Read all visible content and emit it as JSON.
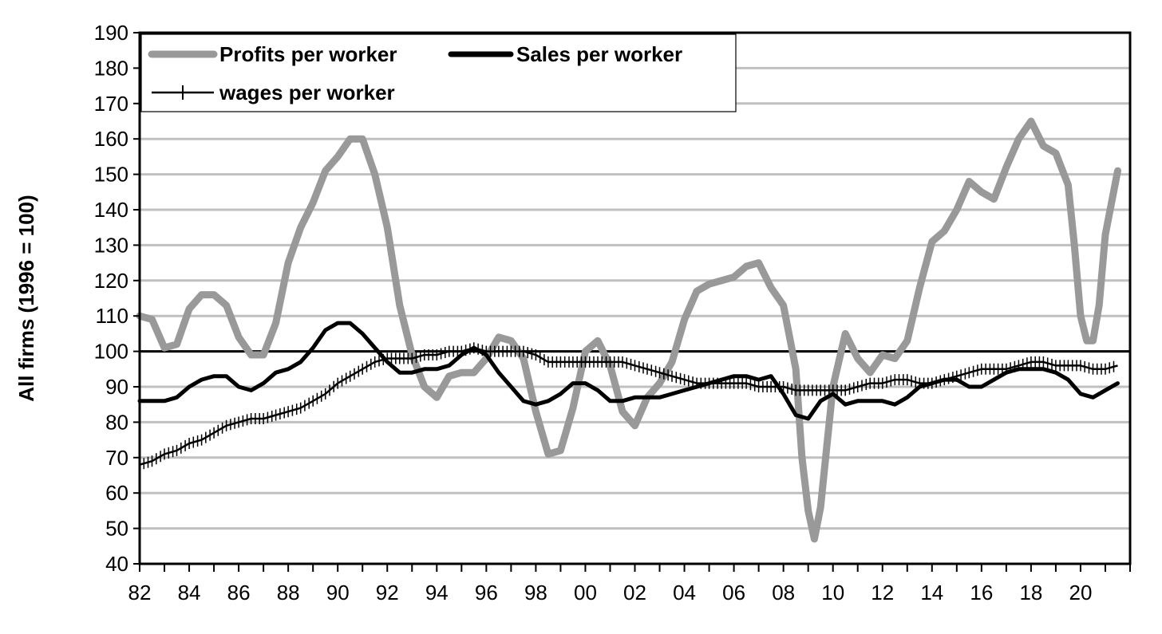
{
  "chart_data": {
    "type": "line",
    "title": "",
    "xlabel": "",
    "ylabel": "All firms (1996 = 100)",
    "ylim": [
      40,
      190
    ],
    "yticks": [
      40,
      50,
      60,
      70,
      80,
      90,
      100,
      110,
      120,
      130,
      140,
      150,
      160,
      170,
      180,
      190
    ],
    "xlim": [
      1982,
      2022
    ],
    "xticks": [
      {
        "value": 1982,
        "label": "82"
      },
      {
        "value": 1984,
        "label": "84"
      },
      {
        "value": 1986,
        "label": "86"
      },
      {
        "value": 1988,
        "label": "88"
      },
      {
        "value": 1990,
        "label": "90"
      },
      {
        "value": 1992,
        "label": "92"
      },
      {
        "value": 1994,
        "label": "94"
      },
      {
        "value": 1996,
        "label": "96"
      },
      {
        "value": 1998,
        "label": "98"
      },
      {
        "value": 2000,
        "label": "00"
      },
      {
        "value": 2002,
        "label": "02"
      },
      {
        "value": 2004,
        "label": "04"
      },
      {
        "value": 2006,
        "label": "06"
      },
      {
        "value": 2008,
        "label": "08"
      },
      {
        "value": 2010,
        "label": "10"
      },
      {
        "value": 2012,
        "label": "12"
      },
      {
        "value": 2014,
        "label": "14"
      },
      {
        "value": 2016,
        "label": "16"
      },
      {
        "value": 2018,
        "label": "18"
      },
      {
        "value": 2020,
        "label": "20"
      }
    ],
    "grid": true,
    "legend_position": "top-left",
    "reference_line": 100,
    "series": [
      {
        "name": "Profits per worker",
        "color": "#999999",
        "style": "thick",
        "points": [
          [
            1982.0,
            110
          ],
          [
            1982.5,
            109
          ],
          [
            1983.0,
            101
          ],
          [
            1983.5,
            102
          ],
          [
            1984.0,
            112
          ],
          [
            1984.5,
            116
          ],
          [
            1985.0,
            116
          ],
          [
            1985.5,
            113
          ],
          [
            1986.0,
            104
          ],
          [
            1986.5,
            99
          ],
          [
            1987.0,
            99
          ],
          [
            1987.5,
            108
          ],
          [
            1988.0,
            125
          ],
          [
            1988.5,
            135
          ],
          [
            1989.0,
            142
          ],
          [
            1989.5,
            151
          ],
          [
            1990.0,
            155
          ],
          [
            1990.5,
            160
          ],
          [
            1991.0,
            160
          ],
          [
            1991.5,
            150
          ],
          [
            1992.0,
            135
          ],
          [
            1992.5,
            113
          ],
          [
            1993.0,
            99
          ],
          [
            1993.5,
            90
          ],
          [
            1994.0,
            87
          ],
          [
            1994.5,
            93
          ],
          [
            1995.0,
            94
          ],
          [
            1995.5,
            94
          ],
          [
            1996.0,
            98
          ],
          [
            1996.5,
            104
          ],
          [
            1997.0,
            103
          ],
          [
            1997.5,
            98
          ],
          [
            1998.0,
            83
          ],
          [
            1998.5,
            71
          ],
          [
            1999.0,
            72
          ],
          [
            1999.5,
            84
          ],
          [
            2000.0,
            100
          ],
          [
            2000.5,
            103
          ],
          [
            2001.0,
            96
          ],
          [
            2001.5,
            83
          ],
          [
            2002.0,
            79
          ],
          [
            2002.5,
            87
          ],
          [
            2003.0,
            91
          ],
          [
            2003.5,
            97
          ],
          [
            2004.0,
            109
          ],
          [
            2004.5,
            117
          ],
          [
            2005.0,
            119
          ],
          [
            2005.5,
            120
          ],
          [
            2006.0,
            121
          ],
          [
            2006.5,
            124
          ],
          [
            2007.0,
            125
          ],
          [
            2007.5,
            118
          ],
          [
            2008.0,
            113
          ],
          [
            2008.5,
            95
          ],
          [
            2008.75,
            70
          ],
          [
            2009.0,
            55
          ],
          [
            2009.25,
            47
          ],
          [
            2009.5,
            56
          ],
          [
            2009.75,
            73
          ],
          [
            2010.0,
            90
          ],
          [
            2010.5,
            105
          ],
          [
            2011.0,
            98
          ],
          [
            2011.5,
            94
          ],
          [
            2012.0,
            99
          ],
          [
            2012.5,
            98
          ],
          [
            2013.0,
            103
          ],
          [
            2013.5,
            118
          ],
          [
            2014.0,
            131
          ],
          [
            2014.5,
            134
          ],
          [
            2015.0,
            140
          ],
          [
            2015.5,
            148
          ],
          [
            2016.0,
            145
          ],
          [
            2016.5,
            143
          ],
          [
            2017.0,
            152
          ],
          [
            2017.5,
            160
          ],
          [
            2018.0,
            165
          ],
          [
            2018.5,
            158
          ],
          [
            2019.0,
            156
          ],
          [
            2019.5,
            147
          ],
          [
            2019.75,
            130
          ],
          [
            2020.0,
            110
          ],
          [
            2020.25,
            103
          ],
          [
            2020.5,
            103
          ],
          [
            2020.75,
            113
          ],
          [
            2021.0,
            133
          ],
          [
            2021.5,
            151
          ]
        ]
      },
      {
        "name": "Sales per worker",
        "color": "#000000",
        "style": "thick",
        "points": [
          [
            1982.0,
            86
          ],
          [
            1982.5,
            86
          ],
          [
            1983.0,
            86
          ],
          [
            1983.5,
            87
          ],
          [
            1984.0,
            90
          ],
          [
            1984.5,
            92
          ],
          [
            1985.0,
            93
          ],
          [
            1985.5,
            93
          ],
          [
            1986.0,
            90
          ],
          [
            1986.5,
            89
          ],
          [
            1987.0,
            91
          ],
          [
            1987.5,
            94
          ],
          [
            1988.0,
            95
          ],
          [
            1988.5,
            97
          ],
          [
            1989.0,
            101
          ],
          [
            1989.5,
            106
          ],
          [
            1990.0,
            108
          ],
          [
            1990.5,
            108
          ],
          [
            1991.0,
            105
          ],
          [
            1991.5,
            101
          ],
          [
            1992.0,
            97
          ],
          [
            1992.5,
            94
          ],
          [
            1993.0,
            94
          ],
          [
            1993.5,
            95
          ],
          [
            1994.0,
            95
          ],
          [
            1994.5,
            96
          ],
          [
            1995.0,
            99
          ],
          [
            1995.5,
            101
          ],
          [
            1996.0,
            99
          ],
          [
            1996.5,
            94
          ],
          [
            1997.0,
            90
          ],
          [
            1997.5,
            86
          ],
          [
            1998.0,
            85
          ],
          [
            1998.5,
            86
          ],
          [
            1999.0,
            88
          ],
          [
            1999.5,
            91
          ],
          [
            2000.0,
            91
          ],
          [
            2000.5,
            89
          ],
          [
            2001.0,
            86
          ],
          [
            2001.5,
            86
          ],
          [
            2002.0,
            87
          ],
          [
            2002.5,
            87
          ],
          [
            2003.0,
            87
          ],
          [
            2003.5,
            88
          ],
          [
            2004.0,
            89
          ],
          [
            2004.5,
            90
          ],
          [
            2005.0,
            91
          ],
          [
            2005.5,
            92
          ],
          [
            2006.0,
            93
          ],
          [
            2006.5,
            93
          ],
          [
            2007.0,
            92
          ],
          [
            2007.5,
            93
          ],
          [
            2008.0,
            88
          ],
          [
            2008.5,
            82
          ],
          [
            2009.0,
            81
          ],
          [
            2009.5,
            86
          ],
          [
            2010.0,
            88
          ],
          [
            2010.5,
            85
          ],
          [
            2011.0,
            86
          ],
          [
            2011.5,
            86
          ],
          [
            2012.0,
            86
          ],
          [
            2012.5,
            85
          ],
          [
            2013.0,
            87
          ],
          [
            2013.5,
            90
          ],
          [
            2014.0,
            91
          ],
          [
            2014.5,
            92
          ],
          [
            2015.0,
            92
          ],
          [
            2015.5,
            90
          ],
          [
            2016.0,
            90
          ],
          [
            2016.5,
            92
          ],
          [
            2017.0,
            94
          ],
          [
            2017.5,
            95
          ],
          [
            2018.0,
            95
          ],
          [
            2018.5,
            95
          ],
          [
            2019.0,
            94
          ],
          [
            2019.5,
            92
          ],
          [
            2020.0,
            88
          ],
          [
            2020.5,
            87
          ],
          [
            2021.0,
            89
          ],
          [
            2021.5,
            91
          ]
        ]
      },
      {
        "name": "wages per worker",
        "color": "#000000",
        "style": "thin-marked",
        "points": [
          [
            1982.0,
            68
          ],
          [
            1982.5,
            69
          ],
          [
            1983.0,
            71
          ],
          [
            1983.5,
            72
          ],
          [
            1984.0,
            74
          ],
          [
            1984.5,
            75
          ],
          [
            1985.0,
            77
          ],
          [
            1985.5,
            79
          ],
          [
            1986.0,
            80
          ],
          [
            1986.5,
            81
          ],
          [
            1987.0,
            81
          ],
          [
            1987.5,
            82
          ],
          [
            1988.0,
            83
          ],
          [
            1988.5,
            84
          ],
          [
            1989.0,
            86
          ],
          [
            1989.5,
            88
          ],
          [
            1990.0,
            91
          ],
          [
            1990.5,
            93
          ],
          [
            1991.0,
            95
          ],
          [
            1991.5,
            97
          ],
          [
            1992.0,
            98
          ],
          [
            1992.5,
            98
          ],
          [
            1993.0,
            98
          ],
          [
            1993.5,
            99
          ],
          [
            1994.0,
            99
          ],
          [
            1994.5,
            100
          ],
          [
            1995.0,
            100
          ],
          [
            1995.5,
            101
          ],
          [
            1996.0,
            100
          ],
          [
            1996.5,
            100
          ],
          [
            1997.0,
            100
          ],
          [
            1997.5,
            100
          ],
          [
            1998.0,
            99
          ],
          [
            1998.5,
            97
          ],
          [
            1999.0,
            97
          ],
          [
            1999.5,
            97
          ],
          [
            2000.0,
            97
          ],
          [
            2000.5,
            97
          ],
          [
            2001.0,
            97
          ],
          [
            2001.5,
            97
          ],
          [
            2002.0,
            96
          ],
          [
            2002.5,
            95
          ],
          [
            2003.0,
            94
          ],
          [
            2003.5,
            93
          ],
          [
            2004.0,
            92
          ],
          [
            2004.5,
            91
          ],
          [
            2005.0,
            91
          ],
          [
            2005.5,
            91
          ],
          [
            2006.0,
            91
          ],
          [
            2006.5,
            91
          ],
          [
            2007.0,
            90
          ],
          [
            2007.5,
            90
          ],
          [
            2008.0,
            90
          ],
          [
            2008.5,
            89
          ],
          [
            2009.0,
            89
          ],
          [
            2009.5,
            89
          ],
          [
            2010.0,
            89
          ],
          [
            2010.5,
            89
          ],
          [
            2011.0,
            90
          ],
          [
            2011.5,
            91
          ],
          [
            2012.0,
            91
          ],
          [
            2012.5,
            92
          ],
          [
            2013.0,
            92
          ],
          [
            2013.5,
            91
          ],
          [
            2014.0,
            91
          ],
          [
            2014.5,
            92
          ],
          [
            2015.0,
            93
          ],
          [
            2015.5,
            94
          ],
          [
            2016.0,
            95
          ],
          [
            2016.5,
            95
          ],
          [
            2017.0,
            95
          ],
          [
            2017.5,
            96
          ],
          [
            2018.0,
            97
          ],
          [
            2018.5,
            97
          ],
          [
            2019.0,
            96
          ],
          [
            2019.5,
            96
          ],
          [
            2020.0,
            96
          ],
          [
            2020.5,
            95
          ],
          [
            2021.0,
            95
          ],
          [
            2021.5,
            96
          ]
        ]
      }
    ]
  }
}
